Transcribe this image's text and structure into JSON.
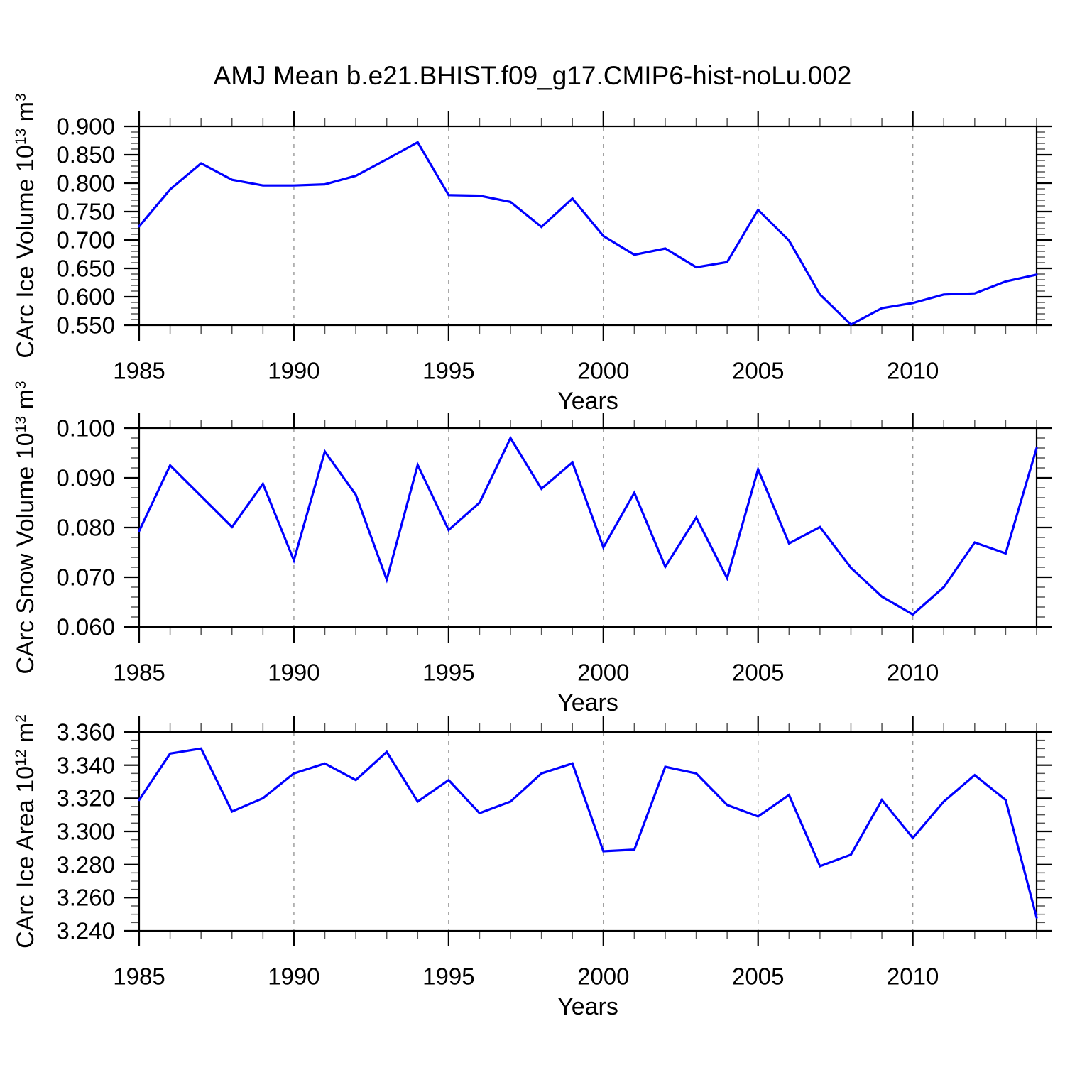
{
  "title": "AMJ Mean b.e21.BHIST.f09_g17.CMIP6-hist-noLu.002",
  "colors": {
    "line": "#0000ff",
    "axis": "#000000",
    "minor_tick": "#555555",
    "grid": "#999999",
    "background": "#ffffff",
    "text": "#000000"
  },
  "x_axis": {
    "label": "Years",
    "years": [
      1985,
      1986,
      1987,
      1988,
      1989,
      1990,
      1991,
      1992,
      1993,
      1994,
      1995,
      1996,
      1997,
      1998,
      1999,
      2000,
      2001,
      2002,
      2003,
      2004,
      2005,
      2006,
      2007,
      2008,
      2009,
      2010,
      2011,
      2012,
      2013,
      2014
    ],
    "tick_labels": [
      "1985",
      "1990",
      "1995",
      "2000",
      "2005",
      "2010"
    ],
    "major_tick_years": [
      1985,
      1990,
      1995,
      2000,
      2005,
      2010
    ],
    "gridline_years": [
      1990,
      1995,
      2000,
      2005,
      2010
    ],
    "minor_step_years": 1
  },
  "chart_data": [
    {
      "type": "line",
      "series_name": "CArc Ice Volume",
      "ylabel": "CArc Ice Volume 10¹³ m³",
      "ylabel_parts": [
        [
          "CArc Ice Volume 10",
          0
        ],
        [
          "13",
          1
        ],
        [
          " m",
          0
        ],
        [
          "3",
          1
        ]
      ],
      "xlabel": "Years",
      "ylim": [
        0.55,
        0.9
      ],
      "ymajor": 0.05,
      "yminor": 0.01,
      "ytick_labels": [
        "0.550",
        "0.600",
        "0.650",
        "0.700",
        "0.750",
        "0.800",
        "0.850",
        "0.900"
      ],
      "grid": "vertical-dashed",
      "legend": "none",
      "x": [
        1985,
        1986,
        1987,
        1988,
        1989,
        1990,
        1991,
        1992,
        1993,
        1994,
        1995,
        1996,
        1997,
        1998,
        1999,
        2000,
        2001,
        2002,
        2003,
        2004,
        2005,
        2006,
        2007,
        2008,
        2009,
        2010,
        2011,
        2012,
        2013,
        2014
      ],
      "values": [
        0.724,
        0.789,
        0.835,
        0.806,
        0.796,
        0.796,
        0.798,
        0.813,
        0.842,
        0.872,
        0.779,
        0.778,
        0.767,
        0.723,
        0.773,
        0.707,
        0.674,
        0.685,
        0.652,
        0.661,
        0.753,
        0.699,
        0.604,
        0.551,
        0.58,
        0.589,
        0.604,
        0.606,
        0.627,
        0.639
      ]
    },
    {
      "type": "line",
      "series_name": "CArc Snow Volume",
      "ylabel": "CArc Snow Volume 10¹³ m³",
      "ylabel_parts": [
        [
          "CArc Snow Volume 10",
          0
        ],
        [
          "13",
          1
        ],
        [
          " m",
          0
        ],
        [
          "3",
          1
        ]
      ],
      "xlabel": "Years",
      "ylim": [
        0.06,
        0.1
      ],
      "ymajor": 0.01,
      "yminor": 0.002,
      "ytick_labels": [
        "0.060",
        "0.070",
        "0.080",
        "0.090",
        "0.100"
      ],
      "grid": "vertical-dashed",
      "legend": "none",
      "x": [
        1985,
        1986,
        1987,
        1988,
        1989,
        1990,
        1991,
        1992,
        1993,
        1994,
        1995,
        1996,
        1997,
        1998,
        1999,
        2000,
        2001,
        2002,
        2003,
        2004,
        2005,
        2006,
        2007,
        2008,
        2009,
        2010,
        2011,
        2012,
        2013,
        2014
      ],
      "values": [
        0.0793,
        0.0925,
        0.0863,
        0.0801,
        0.0888,
        0.0734,
        0.0953,
        0.0866,
        0.0695,
        0.0926,
        0.0795,
        0.085,
        0.098,
        0.0878,
        0.0931,
        0.076,
        0.087,
        0.0721,
        0.082,
        0.0698,
        0.0917,
        0.0768,
        0.0801,
        0.0719,
        0.0661,
        0.0625,
        0.068,
        0.077,
        0.0748,
        0.096
      ]
    },
    {
      "type": "line",
      "series_name": "CArc Ice Area",
      "ylabel": "CArc Ice Area 10¹² m²",
      "ylabel_parts": [
        [
          "CArc Ice Area 10",
          0
        ],
        [
          "12",
          1
        ],
        [
          " m",
          0
        ],
        [
          "2",
          1
        ]
      ],
      "xlabel": "Years",
      "ylim": [
        3.24,
        3.36
      ],
      "ymajor": 0.02,
      "yminor": 0.005,
      "ytick_labels": [
        "3.240",
        "3.260",
        "3.280",
        "3.300",
        "3.320",
        "3.340",
        "3.360"
      ],
      "grid": "vertical-dashed",
      "legend": "none",
      "x": [
        1985,
        1986,
        1987,
        1988,
        1989,
        1990,
        1991,
        1992,
        1993,
        1994,
        1995,
        1996,
        1997,
        1998,
        1999,
        2000,
        2001,
        2002,
        2003,
        2004,
        2005,
        2006,
        2007,
        2008,
        2009,
        2010,
        2011,
        2012,
        2013,
        2014
      ],
      "values": [
        3.319,
        3.347,
        3.35,
        3.312,
        3.32,
        3.335,
        3.341,
        3.331,
        3.348,
        3.318,
        3.331,
        3.311,
        3.318,
        3.335,
        3.341,
        3.288,
        3.289,
        3.339,
        3.335,
        3.316,
        3.309,
        3.322,
        3.279,
        3.286,
        3.319,
        3.296,
        3.318,
        3.334,
        3.319,
        3.248
      ]
    }
  ]
}
